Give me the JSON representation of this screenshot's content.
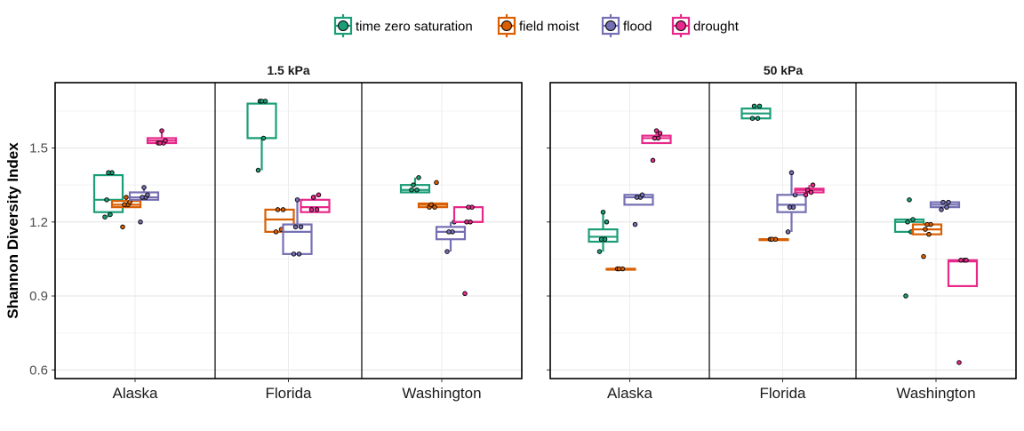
{
  "chart_data": {
    "type": "box",
    "ylabel": "Shannon Diversity Index",
    "y_ticks": [
      "0.6",
      "0.9",
      "1.2",
      "1.5"
    ],
    "ylim": [
      0.565,
      1.765
    ],
    "grid": true,
    "legend_position": "top",
    "categories": [
      "Alaska",
      "Florida",
      "Washington"
    ],
    "legend": [
      {
        "name": "time zero saturation",
        "color": "#1b9e77"
      },
      {
        "name": "field moist",
        "color": "#d95f02"
      },
      {
        "name": "flood",
        "color": "#7570b3"
      },
      {
        "name": "drought",
        "color": "#e7298a"
      }
    ],
    "panels": [
      {
        "title": "1.5 kPa",
        "groups": [
          {
            "site": "Alaska",
            "treatments": [
              {
                "name": "time zero saturation",
                "q1": 1.24,
                "median": 1.29,
                "q3": 1.39,
                "low": 1.22,
                "high": 1.4,
                "points": [
                  1.22,
                  1.23,
                  1.29,
                  1.4,
                  1.4
                ]
              },
              {
                "name": "field moist",
                "q1": 1.26,
                "median": 1.27,
                "q3": 1.285,
                "low": 1.26,
                "high": 1.3,
                "points": [
                  1.18,
                  1.27,
                  1.27,
                  1.28,
                  1.3
                ]
              },
              {
                "name": "flood",
                "q1": 1.29,
                "median": 1.3,
                "q3": 1.32,
                "low": 1.29,
                "high": 1.34,
                "points": [
                  1.2,
                  1.3,
                  1.3,
                  1.31,
                  1.34
                ]
              },
              {
                "name": "drought",
                "q1": 1.52,
                "median": 1.53,
                "q3": 1.54,
                "low": 1.52,
                "high": 1.57,
                "points": [
                  1.52,
                  1.52,
                  1.52,
                  1.53,
                  1.57
                ]
              }
            ]
          },
          {
            "site": "Florida",
            "treatments": [
              {
                "name": "time zero saturation",
                "q1": 1.54,
                "median": 1.54,
                "q3": 1.68,
                "low": 1.41,
                "high": 1.69,
                "points": [
                  1.41,
                  1.54,
                  1.69,
                  1.69,
                  1.69
                ]
              },
              {
                "name": "field moist",
                "q1": 1.16,
                "median": 1.21,
                "q3": 1.25,
                "low": 1.16,
                "high": 1.25,
                "points": [
                  1.16,
                  1.17,
                  1.25,
                  1.25
                ]
              },
              {
                "name": "flood",
                "q1": 1.07,
                "median": 1.16,
                "q3": 1.19,
                "low": 1.07,
                "high": 1.29,
                "points": [
                  1.07,
                  1.07,
                  1.18,
                  1.18,
                  1.29
                ]
              },
              {
                "name": "drought",
                "q1": 1.24,
                "median": 1.26,
                "q3": 1.29,
                "low": 1.24,
                "high": 1.31,
                "points": [
                  1.25,
                  1.25,
                  1.3,
                  1.31
                ]
              }
            ]
          },
          {
            "site": "Washington",
            "treatments": [
              {
                "name": "time zero saturation",
                "q1": 1.32,
                "median": 1.33,
                "q3": 1.35,
                "low": 1.32,
                "high": 1.38,
                "points": [
                  1.33,
                  1.33,
                  1.35,
                  1.38
                ]
              },
              {
                "name": "field moist",
                "q1": 1.26,
                "median": 1.27,
                "q3": 1.275,
                "low": 1.26,
                "high": 1.28,
                "points": [
                  1.26,
                  1.26,
                  1.27,
                  1.36
                ]
              },
              {
                "name": "flood",
                "q1": 1.13,
                "median": 1.16,
                "q3": 1.18,
                "low": 1.08,
                "high": 1.2,
                "points": [
                  1.08,
                  1.16,
                  1.16,
                  1.2
                ]
              },
              {
                "name": "drought",
                "q1": 1.2,
                "median": 1.2,
                "q3": 1.26,
                "low": 1.2,
                "high": 1.26,
                "points": [
                  0.91,
                  1.2,
                  1.2,
                  1.26,
                  1.26
                ]
              }
            ]
          }
        ]
      },
      {
        "title": "50 kPa",
        "groups": [
          {
            "site": "Alaska",
            "treatments": [
              {
                "name": "time zero saturation",
                "q1": 1.12,
                "median": 1.14,
                "q3": 1.17,
                "low": 1.08,
                "high": 1.24,
                "points": [
                  1.08,
                  1.13,
                  1.13,
                  1.2,
                  1.24
                ]
              },
              {
                "name": "field moist",
                "q1": 1.01,
                "median": 1.01,
                "q3": 1.01,
                "low": 1.01,
                "high": 1.01,
                "points": [
                  1.01,
                  1.01,
                  1.01
                ]
              },
              {
                "name": "flood",
                "q1": 1.27,
                "median": 1.3,
                "q3": 1.31,
                "low": 1.27,
                "high": 1.31,
                "points": [
                  1.19,
                  1.3,
                  1.3,
                  1.31
                ]
              },
              {
                "name": "drought",
                "q1": 1.52,
                "median": 1.54,
                "q3": 1.55,
                "low": 1.52,
                "high": 1.57,
                "points": [
                  1.45,
                  1.54,
                  1.54,
                  1.56,
                  1.57
                ]
              }
            ]
          },
          {
            "site": "Florida",
            "treatments": [
              {
                "name": "time zero saturation",
                "q1": 1.62,
                "median": 1.64,
                "q3": 1.66,
                "low": 1.62,
                "high": 1.67,
                "points": [
                  1.62,
                  1.62,
                  1.67,
                  1.67
                ]
              },
              {
                "name": "field moist",
                "q1": 1.13,
                "median": 1.13,
                "q3": 1.13,
                "low": 1.13,
                "high": 1.13,
                "points": [
                  1.13,
                  1.13,
                  1.13
                ]
              },
              {
                "name": "flood",
                "q1": 1.24,
                "median": 1.27,
                "q3": 1.31,
                "low": 1.16,
                "high": 1.4,
                "points": [
                  1.16,
                  1.26,
                  1.26,
                  1.31,
                  1.4
                ]
              },
              {
                "name": "drought",
                "q1": 1.32,
                "median": 1.33,
                "q3": 1.335,
                "low": 1.32,
                "high": 1.35,
                "points": [
                  1.31,
                  1.32,
                  1.33,
                  1.35
                ]
              }
            ]
          },
          {
            "site": "Washington",
            "treatments": [
              {
                "name": "time zero saturation",
                "q1": 1.16,
                "median": 1.2,
                "q3": 1.21,
                "low": 1.16,
                "high": 1.21,
                "points": [
                  0.9,
                  1.16,
                  1.2,
                  1.21,
                  1.29
                ]
              },
              {
                "name": "field moist",
                "q1": 1.15,
                "median": 1.17,
                "q3": 1.19,
                "low": 1.15,
                "high": 1.19,
                "points": [
                  1.06,
                  1.15,
                  1.17,
                  1.19,
                  1.19
                ]
              },
              {
                "name": "flood",
                "q1": 1.26,
                "median": 1.27,
                "q3": 1.28,
                "low": 1.26,
                "high": 1.28,
                "points": [
                  1.25,
                  1.26,
                  1.28,
                  1.28
                ]
              },
              {
                "name": "drought",
                "q1": 0.94,
                "median": 1.04,
                "q3": 1.045,
                "low": 0.94,
                "high": 1.045,
                "points": [
                  0.63,
                  1.045,
                  1.045,
                  1.045
                ]
              }
            ]
          }
        ]
      }
    ]
  }
}
